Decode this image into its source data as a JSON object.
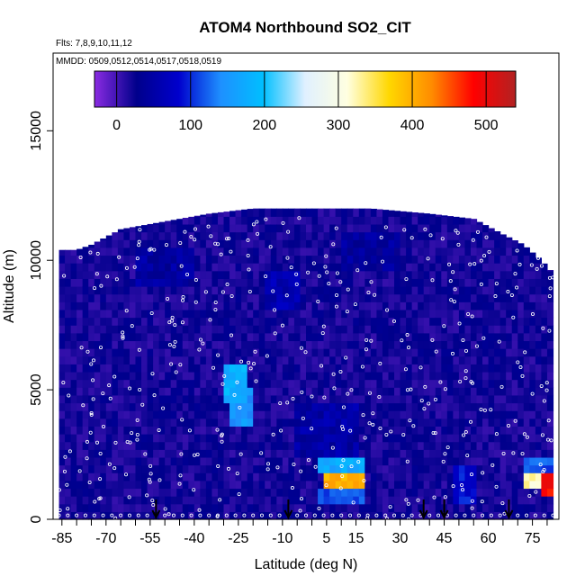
{
  "chart_data": {
    "type": "heatmap",
    "title": "ATOM4 Northbound SO2_CIT",
    "flights_note": "Flts: 7,8,9,10,11,12",
    "dates_note": "MMDD: 0509,0512,0514,0517,0518,0519",
    "xlabel": "Latitude (deg N)",
    "ylabel": "Altitude (m)",
    "xlim": [
      -88,
      84
    ],
    "ylim": [
      0,
      18000
    ],
    "x_ticks": [
      -85,
      -70,
      -55,
      -40,
      -25,
      -10,
      5,
      15,
      30,
      45,
      60,
      75
    ],
    "y_ticks": [
      0,
      5000,
      10000,
      15000
    ],
    "colorbar": {
      "ticks": [
        0,
        100,
        200,
        300,
        400,
        500
      ],
      "range": [
        -30,
        540
      ],
      "colors": [
        "#8a2be2",
        "#00008b",
        "#0000cd",
        "#1e90ff",
        "#00bfff",
        "#e0f0ff",
        "#ffffe0",
        "#ffd700",
        "#ff8c00",
        "#ff0000",
        "#b22222"
      ]
    },
    "arrow_latitudes": [
      -53,
      -8,
      38,
      45,
      67
    ],
    "altitude_ceiling": [
      {
        "lat": -86,
        "alt": 10400
      },
      {
        "lat": -80,
        "alt": 10400
      },
      {
        "lat": -75,
        "alt": 10600
      },
      {
        "lat": -65,
        "alt": 11200
      },
      {
        "lat": -50,
        "alt": 11500
      },
      {
        "lat": -35,
        "alt": 11800
      },
      {
        "lat": -20,
        "alt": 12000
      },
      {
        "lat": 0,
        "alt": 12000
      },
      {
        "lat": 20,
        "alt": 12000
      },
      {
        "lat": 40,
        "alt": 11800
      },
      {
        "lat": 55,
        "alt": 11600
      },
      {
        "lat": 65,
        "alt": 11000
      },
      {
        "lat": 72,
        "alt": 10600
      },
      {
        "lat": 78,
        "alt": 10000
      },
      {
        "lat": 82,
        "alt": 9500
      }
    ],
    "background_value": 20,
    "features": [
      {
        "lat": [
          -30,
          -22
        ],
        "alt": [
          4500,
          6000
        ],
        "value": 180
      },
      {
        "lat": [
          -28,
          -20
        ],
        "alt": [
          3500,
          5000
        ],
        "value": 150
      },
      {
        "lat": [
          -15,
          -5
        ],
        "alt": [
          8000,
          9500
        ],
        "value": 60
      },
      {
        "lat": [
          3,
          18
        ],
        "alt": [
          1800,
          2500
        ],
        "value": 170
      },
      {
        "lat": [
          5,
          17
        ],
        "alt": [
          1200,
          1900
        ],
        "value": 400
      },
      {
        "lat": [
          2,
          18
        ],
        "alt": [
          700,
          1200
        ],
        "value": 120
      },
      {
        "lat": [
          48,
          56
        ],
        "alt": [
          700,
          2000
        ],
        "value": 90
      },
      {
        "lat": [
          72,
          83
        ],
        "alt": [
          1200,
          1900
        ],
        "value": 320
      },
      {
        "lat": [
          79,
          83
        ],
        "alt": [
          900,
          1900
        ],
        "value": 480
      },
      {
        "lat": [
          72,
          83
        ],
        "alt": [
          1900,
          2500
        ],
        "value": 120
      },
      {
        "lat": [
          -60,
          -40
        ],
        "alt": [
          9000,
          10500
        ],
        "value": 45
      },
      {
        "lat": [
          10,
          30
        ],
        "alt": [
          9500,
          11000
        ],
        "value": 40
      },
      {
        "lat": [
          -5,
          15
        ],
        "alt": [
          2500,
          4500
        ],
        "value": 50
      }
    ]
  }
}
